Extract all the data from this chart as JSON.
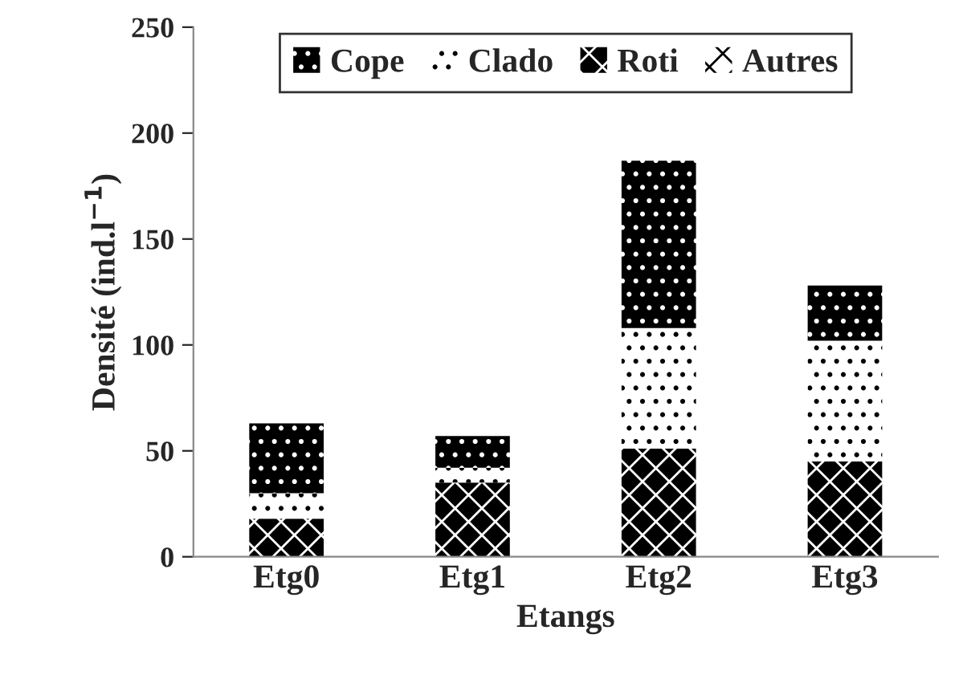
{
  "chart_data": {
    "type": "bar",
    "stacked": true,
    "xlabel": "Etangs",
    "ylabel": "Densité (ind.l$^{−1}$)",
    "categories": [
      "Etg0",
      "Etg1",
      "Etg2",
      "Etg3"
    ],
    "series": [
      {
        "name": "Roti",
        "color": "#000000",
        "values": [
          18,
          35,
          51,
          45
        ]
      },
      {
        "name": "Clado",
        "color": "#ffffff",
        "values": [
          12,
          7,
          57,
          57
        ]
      },
      {
        "name": "Cope",
        "color": "#000000",
        "values": [
          33,
          15,
          79,
          26
        ]
      },
      {
        "name": "Autres",
        "color": "#ffffff",
        "values": [
          0,
          0,
          0,
          0
        ]
      }
    ],
    "ylim": [
      0,
      250
    ],
    "yticks": [
      0,
      50,
      100,
      150,
      200,
      250
    ],
    "grid": false,
    "legend": "top"
  }
}
